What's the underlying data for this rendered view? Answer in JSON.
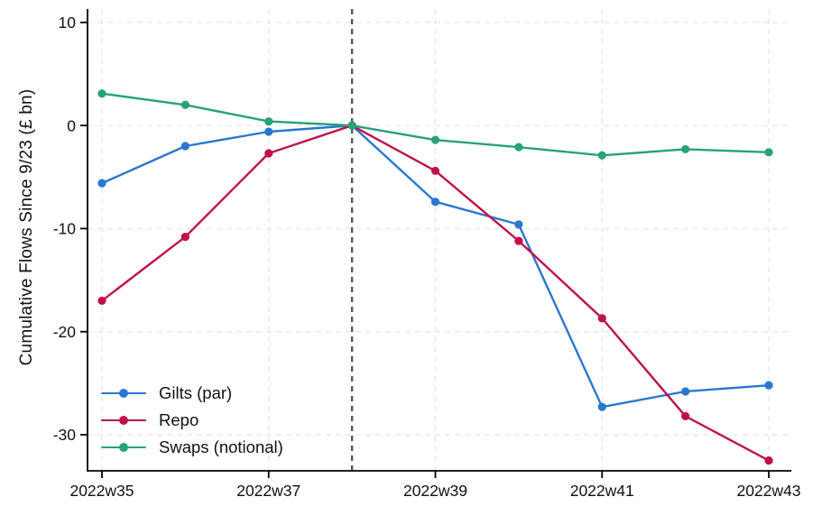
{
  "chart_data": {
    "type": "line",
    "title": "",
    "ylabel": "Cumulative Flows Since 9/23 (£ bn)",
    "xlabel": "",
    "categories": [
      "2022w35",
      "2022w36",
      "2022w37",
      "2022w38",
      "2022w39",
      "2022w40",
      "2022w41",
      "2022w42",
      "2022w43"
    ],
    "series": [
      {
        "name": "Gilts (par)",
        "color": "#2878d2",
        "values": [
          -5.6,
          -2.0,
          -0.6,
          0,
          -7.4,
          -9.6,
          -27.3,
          -25.8,
          -25.2
        ]
      },
      {
        "name": "Repo",
        "color": "#c0104c",
        "values": [
          -17.0,
          -10.8,
          -2.7,
          0,
          -4.4,
          -11.2,
          -18.7,
          -28.2,
          -32.5
        ]
      },
      {
        "name": "Swaps (notional)",
        "color": "#27a376",
        "values": [
          3.1,
          2.0,
          0.4,
          0,
          -1.4,
          -2.1,
          -2.9,
          -2.3,
          -2.6
        ]
      }
    ],
    "yticks": [
      10,
      0,
      -10,
      -20,
      -30
    ],
    "ylim": [
      -33.5,
      11.3
    ],
    "xtick_indices": [
      0,
      2,
      4,
      6,
      8
    ],
    "xtick_labels": [
      "2022w35",
      "2022w37",
      "2022w39",
      "2022w41",
      "2022w43"
    ],
    "reference_line": {
      "at_category": "2022w38",
      "index": 3,
      "style": "dashed",
      "color": "#58585a"
    },
    "legend_position": "bottom-left",
    "grid": true,
    "grid_style": "dashed",
    "grid_color": "#e9e9e9",
    "axis_color": "#000000"
  }
}
